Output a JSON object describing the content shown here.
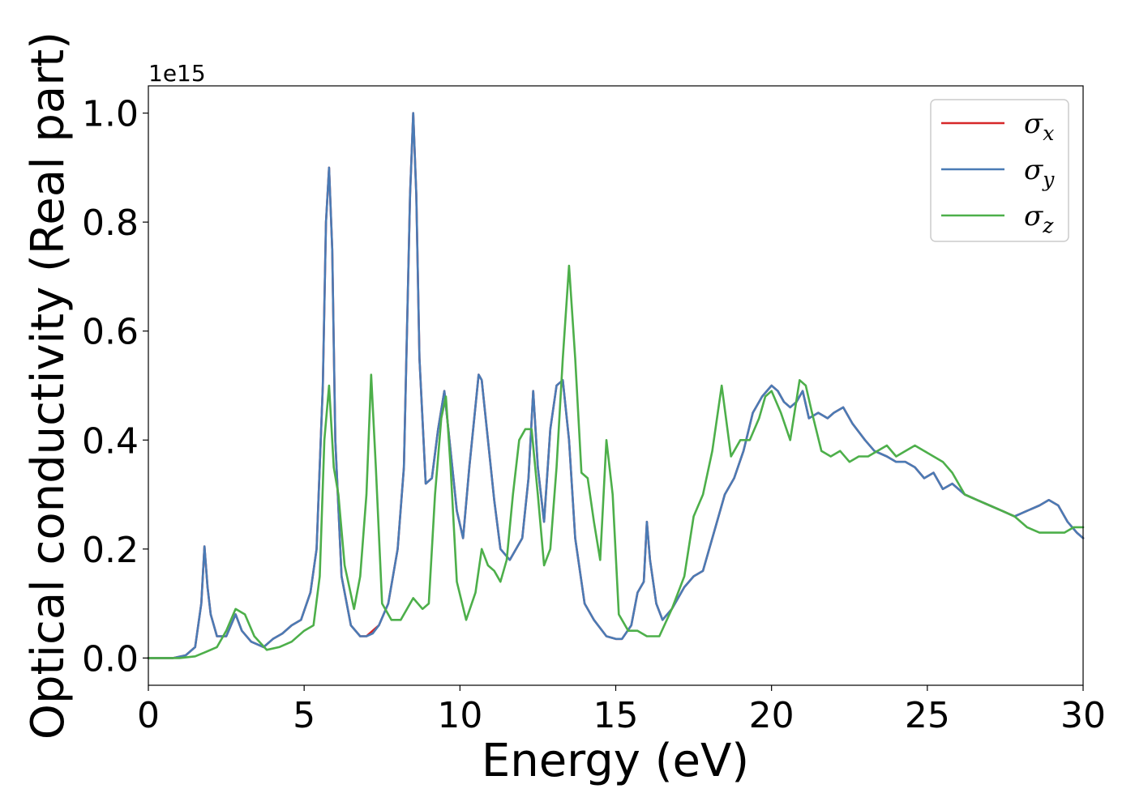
{
  "chart_data": {
    "type": "line",
    "xlabel": "Energy (eV)",
    "ylabel": "Optical conductivity (Real part)",
    "offset_text": "1e15",
    "xlim": [
      0,
      30
    ],
    "ylim": [
      -0.05,
      1.05
    ],
    "xticks": [
      0,
      5,
      10,
      15,
      20,
      25,
      30
    ],
    "xtick_labels": [
      "0",
      "5",
      "10",
      "15",
      "20",
      "25",
      "30"
    ],
    "yticks": [
      0.0,
      0.2,
      0.4,
      0.6,
      0.8,
      1.0
    ],
    "ytick_labels": [
      "0.0",
      "0.2",
      "0.4",
      "0.6",
      "0.8",
      "1.0"
    ],
    "grid": false,
    "legend_position": "top-right",
    "series": [
      {
        "name": "σx",
        "legend": {
          "base": "σ",
          "sub": "x"
        },
        "color": "#d62728",
        "x": [
          0,
          0.8,
          1.2,
          1.5,
          1.7,
          1.8,
          1.9,
          2.0,
          2.2,
          2.5,
          2.8,
          3.0,
          3.3,
          3.7,
          4.0,
          4.3,
          4.6,
          4.9,
          5.2,
          5.4,
          5.6,
          5.7,
          5.8,
          5.9,
          6.0,
          6.2,
          6.5,
          6.8,
          7.0,
          7.2,
          7.4,
          7.7,
          8.0,
          8.2,
          8.3,
          8.4,
          8.5,
          8.6,
          8.7,
          8.9,
          9.1,
          9.3,
          9.5,
          9.7,
          9.9,
          10.1,
          10.3,
          10.6,
          10.7,
          10.9,
          11.1,
          11.3,
          11.6,
          12.0,
          12.2,
          12.35,
          12.5,
          12.7,
          12.9,
          13.1,
          13.3,
          13.5,
          13.7,
          14.0,
          14.3,
          14.7,
          15.0,
          15.2,
          15.5,
          15.7,
          15.9,
          16.0,
          16.1,
          16.3,
          16.5,
          16.8,
          17.2,
          17.5,
          17.8,
          18.2,
          18.5,
          18.8,
          19.1,
          19.4,
          19.7,
          20.0,
          20.2,
          20.4,
          20.6,
          20.8,
          21.0,
          21.2,
          21.5,
          21.8,
          22.0,
          22.3,
          22.6,
          23.0,
          23.3,
          23.7,
          24.0,
          24.3,
          24.6,
          24.9,
          25.2,
          25.5,
          25.8,
          26.2,
          26.6,
          27.0,
          27.4,
          27.8,
          28.2,
          28.6,
          28.9,
          29.2,
          29.5,
          29.8,
          30.0
        ],
        "values": [
          0.0,
          0.0,
          0.005,
          0.02,
          0.1,
          0.205,
          0.13,
          0.08,
          0.04,
          0.04,
          0.08,
          0.05,
          0.03,
          0.02,
          0.035,
          0.045,
          0.06,
          0.07,
          0.12,
          0.2,
          0.5,
          0.8,
          0.9,
          0.75,
          0.4,
          0.15,
          0.06,
          0.04,
          0.04,
          0.05,
          0.06,
          0.1,
          0.2,
          0.35,
          0.6,
          0.85,
          1.0,
          0.85,
          0.55,
          0.32,
          0.33,
          0.42,
          0.49,
          0.38,
          0.27,
          0.22,
          0.35,
          0.52,
          0.51,
          0.4,
          0.29,
          0.2,
          0.18,
          0.22,
          0.33,
          0.49,
          0.35,
          0.25,
          0.42,
          0.5,
          0.51,
          0.4,
          0.22,
          0.1,
          0.07,
          0.04,
          0.035,
          0.035,
          0.06,
          0.12,
          0.14,
          0.25,
          0.18,
          0.1,
          0.07,
          0.09,
          0.13,
          0.15,
          0.16,
          0.24,
          0.3,
          0.33,
          0.38,
          0.45,
          0.48,
          0.5,
          0.49,
          0.47,
          0.46,
          0.47,
          0.49,
          0.44,
          0.45,
          0.44,
          0.45,
          0.46,
          0.43,
          0.4,
          0.38,
          0.37,
          0.36,
          0.36,
          0.35,
          0.33,
          0.34,
          0.31,
          0.32,
          0.3,
          0.29,
          0.28,
          0.27,
          0.26,
          0.27,
          0.28,
          0.29,
          0.28,
          0.25,
          0.23,
          0.22
        ]
      },
      {
        "name": "σy",
        "legend": {
          "base": "σ",
          "sub": "y"
        },
        "color": "#4a7bb5",
        "x": [
          0,
          0.8,
          1.2,
          1.5,
          1.7,
          1.8,
          1.9,
          2.0,
          2.2,
          2.5,
          2.8,
          3.0,
          3.3,
          3.7,
          4.0,
          4.3,
          4.6,
          4.9,
          5.2,
          5.4,
          5.6,
          5.7,
          5.8,
          5.9,
          6.0,
          6.2,
          6.5,
          6.8,
          7.0,
          7.2,
          7.4,
          7.7,
          8.0,
          8.2,
          8.3,
          8.4,
          8.5,
          8.6,
          8.7,
          8.9,
          9.1,
          9.3,
          9.5,
          9.7,
          9.9,
          10.1,
          10.3,
          10.6,
          10.7,
          10.9,
          11.1,
          11.3,
          11.6,
          12.0,
          12.2,
          12.35,
          12.5,
          12.7,
          12.9,
          13.1,
          13.3,
          13.5,
          13.7,
          14.0,
          14.3,
          14.7,
          15.0,
          15.2,
          15.5,
          15.7,
          15.9,
          16.0,
          16.1,
          16.3,
          16.5,
          16.8,
          17.2,
          17.5,
          17.8,
          18.2,
          18.5,
          18.8,
          19.1,
          19.4,
          19.7,
          20.0,
          20.2,
          20.4,
          20.6,
          20.8,
          21.0,
          21.2,
          21.5,
          21.8,
          22.0,
          22.3,
          22.6,
          23.0,
          23.3,
          23.7,
          24.0,
          24.3,
          24.6,
          24.9,
          25.2,
          25.5,
          25.8,
          26.2,
          26.6,
          27.0,
          27.4,
          27.8,
          28.2,
          28.6,
          28.9,
          29.2,
          29.5,
          29.8,
          30.0
        ],
        "values": [
          0.0,
          0.0,
          0.005,
          0.02,
          0.1,
          0.205,
          0.13,
          0.08,
          0.04,
          0.04,
          0.08,
          0.05,
          0.03,
          0.02,
          0.035,
          0.045,
          0.06,
          0.07,
          0.12,
          0.2,
          0.5,
          0.8,
          0.9,
          0.75,
          0.4,
          0.15,
          0.06,
          0.04,
          0.04,
          0.045,
          0.06,
          0.1,
          0.2,
          0.35,
          0.6,
          0.85,
          1.0,
          0.85,
          0.55,
          0.32,
          0.33,
          0.42,
          0.49,
          0.38,
          0.27,
          0.22,
          0.35,
          0.52,
          0.51,
          0.4,
          0.29,
          0.2,
          0.18,
          0.22,
          0.33,
          0.49,
          0.35,
          0.25,
          0.42,
          0.5,
          0.51,
          0.4,
          0.22,
          0.1,
          0.07,
          0.04,
          0.035,
          0.035,
          0.06,
          0.12,
          0.14,
          0.25,
          0.18,
          0.1,
          0.07,
          0.09,
          0.13,
          0.15,
          0.16,
          0.24,
          0.3,
          0.33,
          0.38,
          0.45,
          0.48,
          0.5,
          0.49,
          0.47,
          0.46,
          0.47,
          0.49,
          0.44,
          0.45,
          0.44,
          0.45,
          0.46,
          0.43,
          0.4,
          0.38,
          0.37,
          0.36,
          0.36,
          0.35,
          0.33,
          0.34,
          0.31,
          0.32,
          0.3,
          0.29,
          0.28,
          0.27,
          0.26,
          0.27,
          0.28,
          0.29,
          0.28,
          0.25,
          0.23,
          0.22
        ]
      },
      {
        "name": "σz",
        "legend": {
          "base": "σ",
          "sub": "z"
        },
        "color": "#4daf4a",
        "x": [
          0,
          1.0,
          1.5,
          1.8,
          2.2,
          2.5,
          2.8,
          3.1,
          3.4,
          3.8,
          4.2,
          4.6,
          5.0,
          5.3,
          5.5,
          5.65,
          5.8,
          5.95,
          6.1,
          6.3,
          6.6,
          6.8,
          7.0,
          7.15,
          7.3,
          7.5,
          7.8,
          8.1,
          8.5,
          8.8,
          9.0,
          9.2,
          9.4,
          9.55,
          9.7,
          9.9,
          10.2,
          10.5,
          10.7,
          10.9,
          11.1,
          11.3,
          11.5,
          11.7,
          11.9,
          12.1,
          12.3,
          12.5,
          12.7,
          12.9,
          13.1,
          13.3,
          13.5,
          13.7,
          13.9,
          14.1,
          14.3,
          14.5,
          14.7,
          14.9,
          15.1,
          15.4,
          15.7,
          16.0,
          16.4,
          16.8,
          17.2,
          17.5,
          17.8,
          18.1,
          18.4,
          18.7,
          19.0,
          19.3,
          19.6,
          19.8,
          20.0,
          20.3,
          20.6,
          20.9,
          21.1,
          21.3,
          21.6,
          21.9,
          22.2,
          22.5,
          22.8,
          23.1,
          23.4,
          23.7,
          24.0,
          24.3,
          24.6,
          24.9,
          25.2,
          25.5,
          25.8,
          26.2,
          26.6,
          27.0,
          27.4,
          27.8,
          28.2,
          28.6,
          29.0,
          29.4,
          29.7,
          30.0
        ],
        "values": [
          0.0,
          0.0,
          0.003,
          0.01,
          0.02,
          0.05,
          0.09,
          0.08,
          0.04,
          0.015,
          0.02,
          0.03,
          0.05,
          0.06,
          0.15,
          0.4,
          0.5,
          0.35,
          0.3,
          0.17,
          0.09,
          0.15,
          0.3,
          0.52,
          0.35,
          0.1,
          0.07,
          0.07,
          0.11,
          0.09,
          0.1,
          0.3,
          0.44,
          0.48,
          0.35,
          0.14,
          0.07,
          0.12,
          0.2,
          0.17,
          0.16,
          0.14,
          0.18,
          0.3,
          0.4,
          0.42,
          0.42,
          0.3,
          0.17,
          0.2,
          0.35,
          0.55,
          0.72,
          0.55,
          0.34,
          0.33,
          0.25,
          0.18,
          0.4,
          0.3,
          0.08,
          0.05,
          0.05,
          0.04,
          0.04,
          0.09,
          0.15,
          0.26,
          0.3,
          0.38,
          0.5,
          0.37,
          0.4,
          0.4,
          0.44,
          0.48,
          0.49,
          0.45,
          0.4,
          0.51,
          0.5,
          0.45,
          0.38,
          0.37,
          0.38,
          0.36,
          0.37,
          0.37,
          0.38,
          0.39,
          0.37,
          0.38,
          0.39,
          0.38,
          0.37,
          0.36,
          0.34,
          0.3,
          0.29,
          0.28,
          0.27,
          0.26,
          0.24,
          0.23,
          0.23,
          0.23,
          0.24,
          0.24
        ]
      }
    ]
  }
}
